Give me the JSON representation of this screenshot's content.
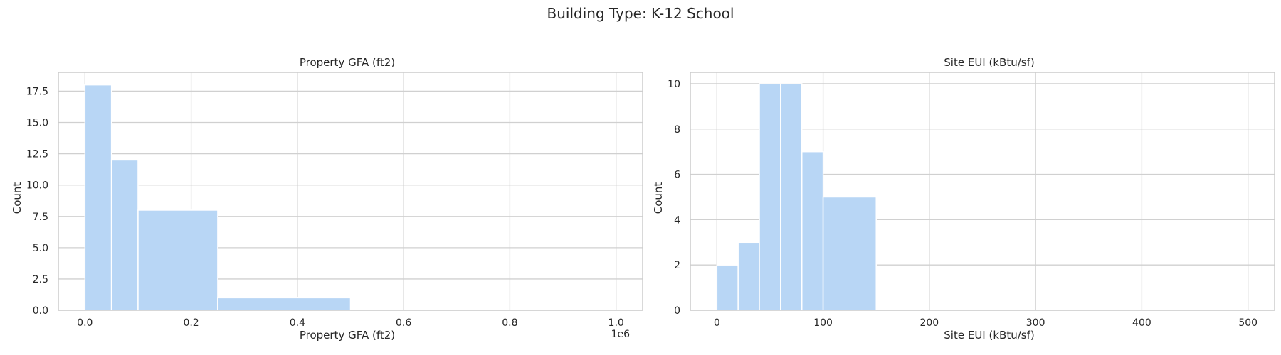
{
  "suptitle": "Building Type: K-12 School",
  "colors": {
    "bar": "#b8d6f5",
    "grid": "#d0d0d0",
    "axis": "#cccccc",
    "text": "#262626"
  },
  "chart_data": [
    {
      "type": "bar",
      "title": "Property GFA (ft2)",
      "xlabel": "Property GFA (ft2)",
      "ylabel": "Count",
      "offset_text": "1e6",
      "xlim": [
        -50000,
        1050000
      ],
      "ylim": [
        0,
        19
      ],
      "xticks": [
        0,
        200000,
        400000,
        600000,
        800000,
        1000000
      ],
      "xtick_labels": [
        "0.0",
        "0.2",
        "0.4",
        "0.6",
        "0.8",
        "1.0"
      ],
      "yticks": [
        0,
        2.5,
        5,
        7.5,
        10,
        12.5,
        15,
        17.5
      ],
      "ytick_labels": [
        "0.0",
        "2.5",
        "5.0",
        "7.5",
        "10.0",
        "12.5",
        "15.0",
        "17.5"
      ],
      "grid": true,
      "bins": [
        {
          "x0": 0,
          "x1": 50000,
          "count": 18
        },
        {
          "x0": 50000,
          "x1": 100000,
          "count": 12
        },
        {
          "x0": 100000,
          "x1": 250000,
          "count": 8
        },
        {
          "x0": 250000,
          "x1": 500000,
          "count": 1
        },
        {
          "x0": 500000,
          "x1": 1000000,
          "count": 0
        }
      ]
    },
    {
      "type": "bar",
      "title": "Site EUI (kBtu/sf)",
      "xlabel": "Site EUI (kBtu/sf)",
      "ylabel": "Count",
      "xlim": [
        -25,
        525
      ],
      "ylim": [
        0,
        10.5
      ],
      "xticks": [
        0,
        100,
        200,
        300,
        400,
        500
      ],
      "xtick_labels": [
        "0",
        "100",
        "200",
        "300",
        "400",
        "500"
      ],
      "yticks": [
        0,
        2,
        4,
        6,
        8,
        10
      ],
      "ytick_labels": [
        "0",
        "2",
        "4",
        "6",
        "8",
        "10"
      ],
      "grid": true,
      "bins": [
        {
          "x0": 0,
          "x1": 20,
          "count": 2
        },
        {
          "x0": 20,
          "x1": 40,
          "count": 3
        },
        {
          "x0": 40,
          "x1": 60,
          "count": 10
        },
        {
          "x0": 60,
          "x1": 80,
          "count": 10
        },
        {
          "x0": 80,
          "x1": 100,
          "count": 7
        },
        {
          "x0": 100,
          "x1": 150,
          "count": 5
        },
        {
          "x0": 150,
          "x1": 500,
          "count": 0
        }
      ]
    }
  ]
}
